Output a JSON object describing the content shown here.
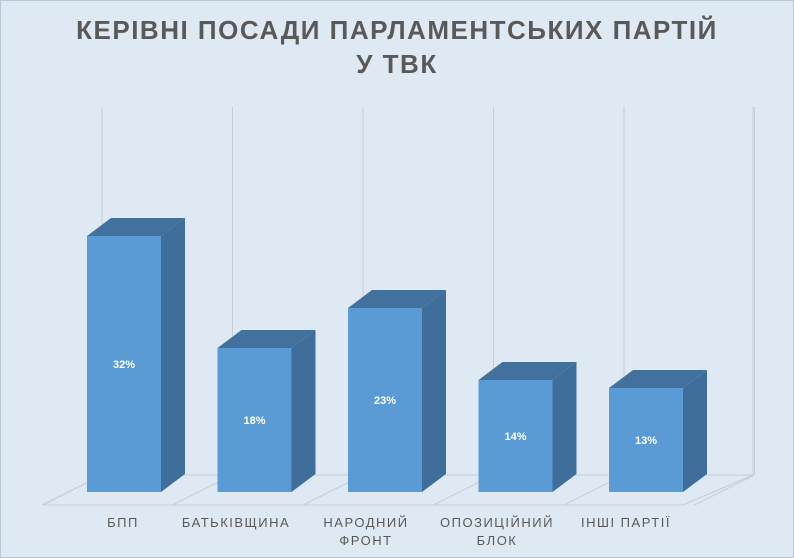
{
  "chart_data": {
    "type": "bar",
    "title": "КЕРІВНІ ПОСАДИ ПАРЛАМЕНТСЬКИХ ПАРТІЙ У ТВК",
    "title_lines": [
      "КЕРІВНІ ПОСАДИ ПАРЛАМЕНТСЬКИХ ПАРТІЙ",
      "У ТВК"
    ],
    "categories": [
      "БПП",
      "БАТЬКІВЩИНА",
      "НАРОДНИЙ ФРОНТ",
      "ОПОЗИЦІЙНИЙ БЛОК",
      "ІНШІ ПАРТІЇ"
    ],
    "category_lines": [
      [
        "БПП"
      ],
      [
        "БАТЬКІВЩИНА"
      ],
      [
        "НАРОДНИЙ",
        "ФРОНТ"
      ],
      [
        "ОПОЗИЦІЙНИЙ",
        "БЛОК"
      ],
      [
        "ІНШІ ПАРТІЇ"
      ]
    ],
    "values": [
      32,
      18,
      23,
      14,
      13
    ],
    "data_labels": [
      "32%",
      "18%",
      "23%",
      "14%",
      "13%"
    ],
    "unit": "%",
    "ylim": [
      0,
      40
    ],
    "style": "3d-column",
    "grid": true,
    "legend": "none",
    "colors": {
      "bar_front": "#5b9bd5",
      "bar_side": "#3e6e99",
      "bar_top": "#41719c",
      "gridline": "#c5ced8",
      "text": "#595959",
      "data_label": "#ffffff"
    }
  }
}
